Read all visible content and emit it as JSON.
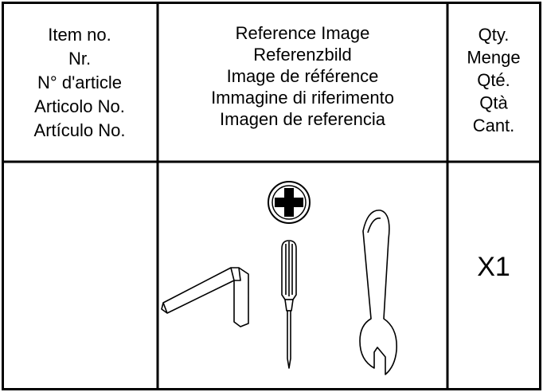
{
  "table": {
    "columns": [
      {
        "lines": [
          "Item no.",
          "Nr.",
          "N° d'article",
          "Articolo No.",
          "Artículo No."
        ]
      },
      {
        "lines": [
          "Reference Image",
          "Referenzbild",
          "Image de référence",
          "Immagine di riferimento",
          "Imagen de referencia"
        ]
      },
      {
        "lines": [
          "Qty.",
          "Menge",
          "Qté.",
          "Qtà",
          "Cant."
        ]
      }
    ],
    "rows": [
      {
        "quantity": "X1"
      }
    ]
  }
}
